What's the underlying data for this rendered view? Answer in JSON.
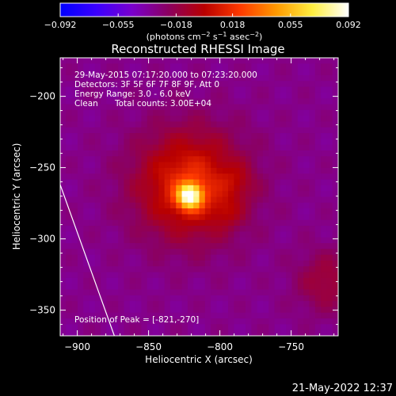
{
  "chart_data": {
    "type": "heatmap",
    "title": "Reconstructed RHESSI Image",
    "colorbar": {
      "ticks": [
        "-0.092",
        "-0.055",
        "-0.018",
        "0.018",
        "0.055",
        "0.092"
      ],
      "tick_values": [
        -0.092,
        -0.055,
        -0.018,
        0.018,
        0.055,
        0.092
      ],
      "range": [
        -0.092,
        0.092
      ],
      "label": "(photons cm-2 s-1 asec-2)",
      "colormap": [
        "#0000ff",
        "#3a00ff",
        "#7a00cc",
        "#8b0060",
        "#b80000",
        "#ff3a00",
        "#ff9900",
        "#ffee40",
        "#ffffff"
      ]
    },
    "annotations": {
      "time": "29-May-2015 07:17:20.000 to 07:23:20.000",
      "detectors": "Detectors: 3F 5F 6F 7F 8F 9F, Att 0",
      "energy": "Energy Range: 3.0 - 6.0 keV",
      "method": "Clean",
      "counts": "Total counts: 3.00E+04",
      "peak": "Position of Peak = [-821,-270]"
    },
    "xlabel": "Heliocentric X (arcsec)",
    "ylabel": "Heliocentric Y (arcsec)",
    "xlim": [
      -912,
      -717
    ],
    "ylim": [
      -368,
      -173
    ],
    "xticks": [
      -900,
      -850,
      -800,
      -750
    ],
    "yticks": [
      -200,
      -250,
      -300,
      -350
    ],
    "peak": {
      "x": -821,
      "y": -270
    },
    "limb_line": [
      [
        -912,
        -262
      ],
      [
        -874,
        -368
      ]
    ],
    "source": {
      "components": [
        {
          "x": -821,
          "y": -270,
          "amplitude": 0.092,
          "sigma": 6
        },
        {
          "x": -821,
          "y": -262,
          "amplitude": 0.05,
          "sigma": 26
        },
        {
          "x": -788,
          "y": -260,
          "amplitude": 0.012,
          "sigma": 8
        },
        {
          "x": -795,
          "y": -282,
          "amplitude": 0.012,
          "sigma": 7
        },
        {
          "x": -725,
          "y": -330,
          "amplitude": 0.02,
          "sigma": 15
        }
      ],
      "background": -0.032
    }
  },
  "footer": {
    "timestamp": "21-May-2022 12:37"
  }
}
